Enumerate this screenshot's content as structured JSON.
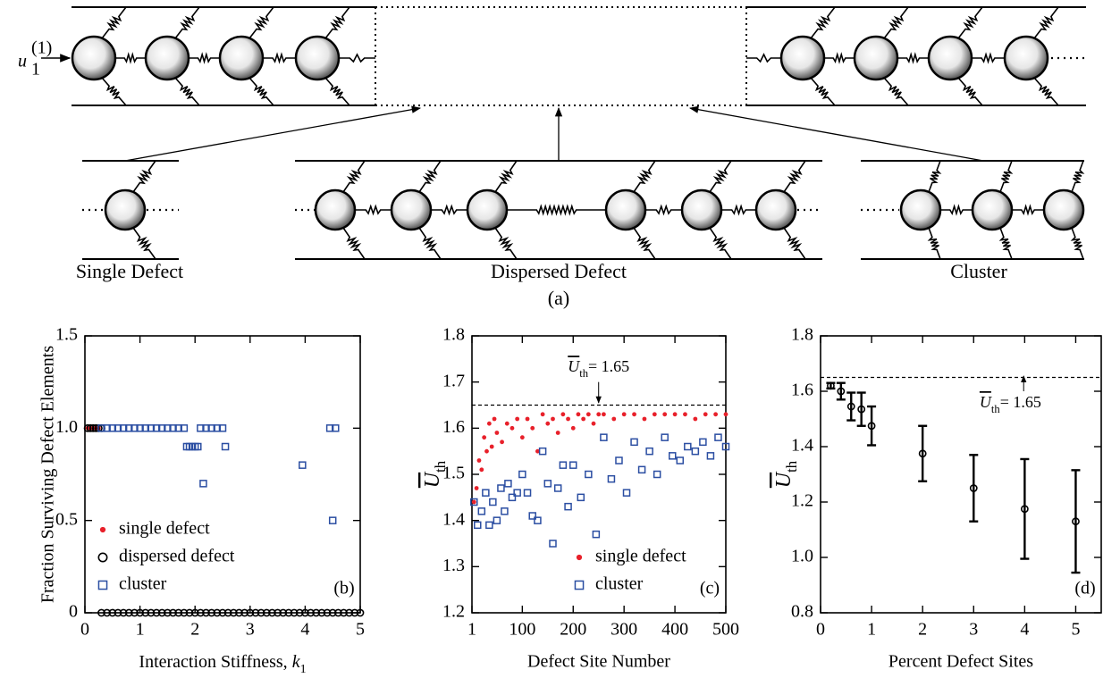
{
  "diagram": {
    "input_label": {
      "symbol": "u",
      "superscript": "(1)",
      "subscript": "1"
    },
    "labels": [
      "Single Defect",
      "Dispersed Defect",
      "Cluster"
    ],
    "caption": "(a)"
  },
  "chart_data": [
    {
      "type": "scatter",
      "label": "(b)",
      "xlabel": {
        "text": "Interaction Stiffness, ",
        "symbol": "k",
        "subscript": "1"
      },
      "ylabel": "Fraction Surviving Defect Elements",
      "xlim": [
        0,
        5
      ],
      "ylim": [
        0,
        1.5
      ],
      "xticks": [
        0,
        1,
        2,
        3,
        4,
        5
      ],
      "yticks": [
        0,
        0.5,
        {
          "value": 1,
          "label": "1.0"
        },
        1.5
      ],
      "legend": "lower left",
      "series": [
        {
          "name": "single defect",
          "color": "#e8202a",
          "marker": "dot",
          "x": [
            0.05,
            0.1,
            0.15,
            0.2,
            0.25
          ],
          "values": [
            1,
            1,
            1,
            1,
            1
          ]
        },
        {
          "name": "dispersed defect",
          "color": "#000000",
          "marker": "circle",
          "x": [
            0.05,
            0.1,
            0.15,
            0.2,
            0.25,
            0.3,
            0.3,
            0.4,
            0.5,
            0.6,
            0.7,
            0.8,
            0.9,
            1.0,
            1.1,
            1.2,
            1.3,
            1.4,
            1.5,
            1.6,
            1.7,
            1.8,
            1.9,
            2.0,
            2.1,
            2.2,
            2.3,
            2.4,
            2.5,
            2.6,
            2.7,
            2.8,
            2.9,
            3.0,
            3.1,
            3.2,
            3.3,
            3.4,
            3.5,
            3.6,
            3.7,
            3.8,
            3.9,
            4.0,
            4.1,
            4.2,
            4.3,
            4.4,
            4.5,
            4.6,
            4.7,
            4.8,
            4.9,
            5.0
          ],
          "values": [
            1,
            1,
            1,
            1,
            1,
            1,
            0,
            0,
            0,
            0,
            0,
            0,
            0,
            0,
            0,
            0,
            0,
            0,
            0,
            0,
            0,
            0,
            0,
            0,
            0,
            0,
            0,
            0,
            0,
            0,
            0,
            0,
            0,
            0,
            0,
            0,
            0,
            0,
            0,
            0,
            0,
            0,
            0,
            0,
            0,
            0,
            0,
            0,
            0,
            0,
            0,
            0,
            0,
            0
          ]
        },
        {
          "name": "cluster",
          "color": "#2b4ea2",
          "marker": "square",
          "x": [
            0.3,
            0.4,
            0.5,
            0.6,
            0.7,
            0.8,
            0.9,
            1.0,
            1.1,
            1.2,
            1.3,
            1.4,
            1.5,
            1.6,
            1.7,
            1.8,
            1.85,
            1.9,
            1.95,
            2.0,
            2.05,
            2.15,
            2.1,
            2.2,
            2.3,
            2.4,
            2.5,
            2.55,
            3.95,
            4.45,
            4.55,
            4.5
          ],
          "values": [
            1,
            1,
            1,
            1,
            1,
            1,
            1,
            1,
            1,
            1,
            1,
            1,
            1,
            1,
            1,
            1,
            0.9,
            0.9,
            0.9,
            0.9,
            0.9,
            0.7,
            1,
            1,
            1,
            1,
            1,
            0.9,
            0.8,
            1,
            1,
            0.5
          ]
        }
      ]
    },
    {
      "type": "scatter",
      "label": "(c)",
      "xlabel": "Defect Site Number",
      "ylabel": {
        "symbol": "U",
        "subscript": "th"
      },
      "xlim": [
        1,
        500
      ],
      "ylim": [
        1.2,
        1.8
      ],
      "xticks": [
        1,
        100,
        200,
        300,
        400,
        500
      ],
      "yticks": [
        1.2,
        1.3,
        1.4,
        1.5,
        1.6,
        1.7,
        1.8
      ],
      "legend": "lower right",
      "threshold": 1.65,
      "annotation": {
        "symbol": "U",
        "subscript": "th",
        "text": "= 1.65"
      },
      "series": [
        {
          "name": "single defect",
          "color": "#e8202a",
          "marker": "dot",
          "x": [
            5,
            10,
            15,
            20,
            25,
            30,
            35,
            40,
            45,
            50,
            60,
            70,
            80,
            90,
            100,
            110,
            120,
            130,
            140,
            150,
            160,
            170,
            180,
            190,
            200,
            210,
            220,
            230,
            240,
            250,
            260,
            280,
            300,
            320,
            340,
            360,
            380,
            400,
            420,
            440,
            460,
            480,
            500
          ],
          "values": [
            1.44,
            1.47,
            1.53,
            1.51,
            1.58,
            1.55,
            1.61,
            1.56,
            1.62,
            1.59,
            1.57,
            1.61,
            1.6,
            1.62,
            1.58,
            1.62,
            1.6,
            1.55,
            1.63,
            1.61,
            1.62,
            1.59,
            1.63,
            1.62,
            1.6,
            1.63,
            1.62,
            1.63,
            1.61,
            1.63,
            1.63,
            1.62,
            1.63,
            1.63,
            1.62,
            1.63,
            1.63,
            1.63,
            1.63,
            1.62,
            1.63,
            1.63,
            1.63
          ]
        },
        {
          "name": "cluster",
          "color": "#2b4ea2",
          "marker": "square",
          "x": [
            5,
            12,
            20,
            28,
            35,
            42,
            50,
            58,
            65,
            72,
            80,
            90,
            100,
            110,
            120,
            130,
            140,
            150,
            160,
            170,
            180,
            190,
            200,
            215,
            230,
            245,
            260,
            275,
            290,
            305,
            320,
            335,
            350,
            365,
            380,
            395,
            410,
            425,
            440,
            455,
            470,
            485,
            500
          ],
          "values": [
            1.44,
            1.39,
            1.42,
            1.46,
            1.39,
            1.44,
            1.4,
            1.47,
            1.42,
            1.48,
            1.45,
            1.46,
            1.5,
            1.46,
            1.41,
            1.4,
            1.55,
            1.48,
            1.35,
            1.47,
            1.52,
            1.43,
            1.52,
            1.45,
            1.5,
            1.37,
            1.58,
            1.49,
            1.53,
            1.46,
            1.57,
            1.51,
            1.55,
            1.5,
            1.58,
            1.54,
            1.53,
            1.56,
            1.55,
            1.57,
            1.54,
            1.58,
            1.56
          ]
        }
      ]
    },
    {
      "type": "scatter",
      "label": "(d)",
      "xlabel": "Percent Defect Sites",
      "ylabel": {
        "symbol": "U",
        "subscript": "th"
      },
      "xlim": [
        0,
        5.5
      ],
      "ylim": [
        0.8,
        1.8
      ],
      "xticks": [
        0,
        1,
        2,
        3,
        4,
        5
      ],
      "yticks": [
        0.8,
        {
          "value": 1,
          "label": "1.0"
        },
        1.2,
        1.4,
        1.6,
        1.8
      ],
      "threshold": 1.65,
      "annotation": {
        "symbol": "U",
        "subscript": "th",
        "text": "= 1.65"
      },
      "series": [
        {
          "color": "#000000",
          "marker": "circle",
          "x": [
            0.2,
            0.4,
            0.6,
            0.8,
            1,
            2,
            3,
            4,
            5
          ],
          "values": [
            1.62,
            1.6,
            1.545,
            1.535,
            1.475,
            1.375,
            1.25,
            1.175,
            1.13
          ],
          "errors": [
            0.01,
            0.03,
            0.05,
            0.06,
            0.07,
            0.1,
            0.12,
            0.18,
            0.185
          ]
        }
      ]
    }
  ]
}
